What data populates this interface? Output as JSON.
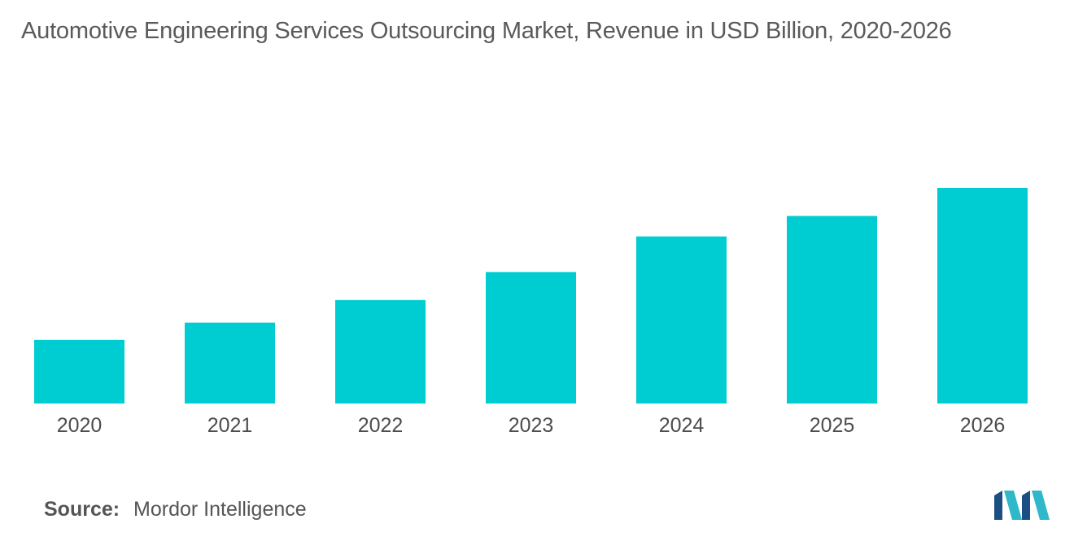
{
  "title": "Automotive Engineering Services Outsourcing Market, Revenue in USD Billion, 2020-2026",
  "source": {
    "label": "Source:",
    "value": "Mordor Intelligence"
  },
  "colors": {
    "bar": "#00cdd1",
    "logo_dark": "#1b4e82",
    "logo_light": "#2eb8c9"
  },
  "logo": {
    "icon": "mordor-intelligence-logo"
  },
  "chart_data": {
    "type": "bar",
    "categories": [
      "2020",
      "2021",
      "2022",
      "2023",
      "2024",
      "2025",
      "2026"
    ],
    "values": [
      2.95,
      3.75,
      4.8,
      6.1,
      7.75,
      8.7,
      10.0
    ],
    "ylim": [
      0,
      10.0
    ],
    "grid": false,
    "legend": "none"
  }
}
